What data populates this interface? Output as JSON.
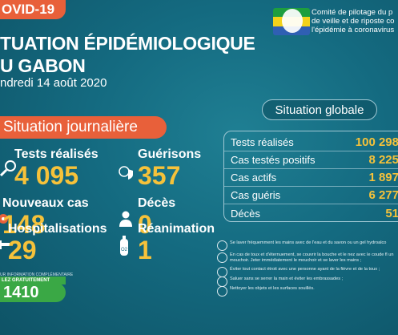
{
  "header": {
    "tag": "OVID-19",
    "title_line1": "TUATION ÉPIDÉMIOLOGIQUE",
    "title_line2": "U GABON",
    "date": "ndredi 14 août 2020"
  },
  "committee": {
    "line1": "Comité de pilotage du p",
    "line2": "de veille et de riposte co",
    "line3": "l'épidémie à coronavirus"
  },
  "daily": {
    "banner": "Situation journalière",
    "stats": [
      {
        "label": "Tests réalisés",
        "value": "4 095",
        "icon": "magnifier-icon"
      },
      {
        "label": "Guérisons",
        "value": "357",
        "icon": "virus-shield-icon"
      },
      {
        "label": "Nouveaux cas",
        "value": "148",
        "icon": "virus-icon"
      },
      {
        "label": "Décès",
        "value": "0",
        "icon": "person-icon"
      },
      {
        "label": "Hospitalisations",
        "value": "29",
        "icon": "bed-icon"
      },
      {
        "label": "Réanimation",
        "value": "1",
        "icon": "oxygen-tank-icon"
      }
    ]
  },
  "global": {
    "title": "Situation globale",
    "rows": [
      {
        "label": "Tests réalisés",
        "value": "100 298"
      },
      {
        "label": "Cas testés positifs",
        "value": "8 225"
      },
      {
        "label": "Cas actifs",
        "value": "1 897"
      },
      {
        "label": "Cas guéris",
        "value": "6 277"
      },
      {
        "label": "Décès",
        "value": "51"
      }
    ]
  },
  "tips": [
    "Se laver fréquemment les mains avec de l'eau et du savon ou un gel hydroalco",
    "En cas de toux et d'éternuement, se couvrir la bouche et le nez avec le coude fl un mouchoir. Jeter immédiatement le mouchoir et se laver les mains ;",
    "Éviter tout contact étroit avec une personne ayant de la fièvre et de la toux ;",
    "Saluer sans se serrer la main et éviter les embrassades ;",
    "Nettoyer les objets et les surfaces souillés."
  ],
  "hotline": {
    "info": "UR INFORMATION COMPLÉMENTAIRE",
    "free": "LEZ GRATUITEMENT",
    "number": "1410"
  },
  "colors": {
    "accent_orange": "#e8603a",
    "value_yellow": "#f6c23a",
    "green": "#3aa845",
    "background": "#146a80"
  }
}
